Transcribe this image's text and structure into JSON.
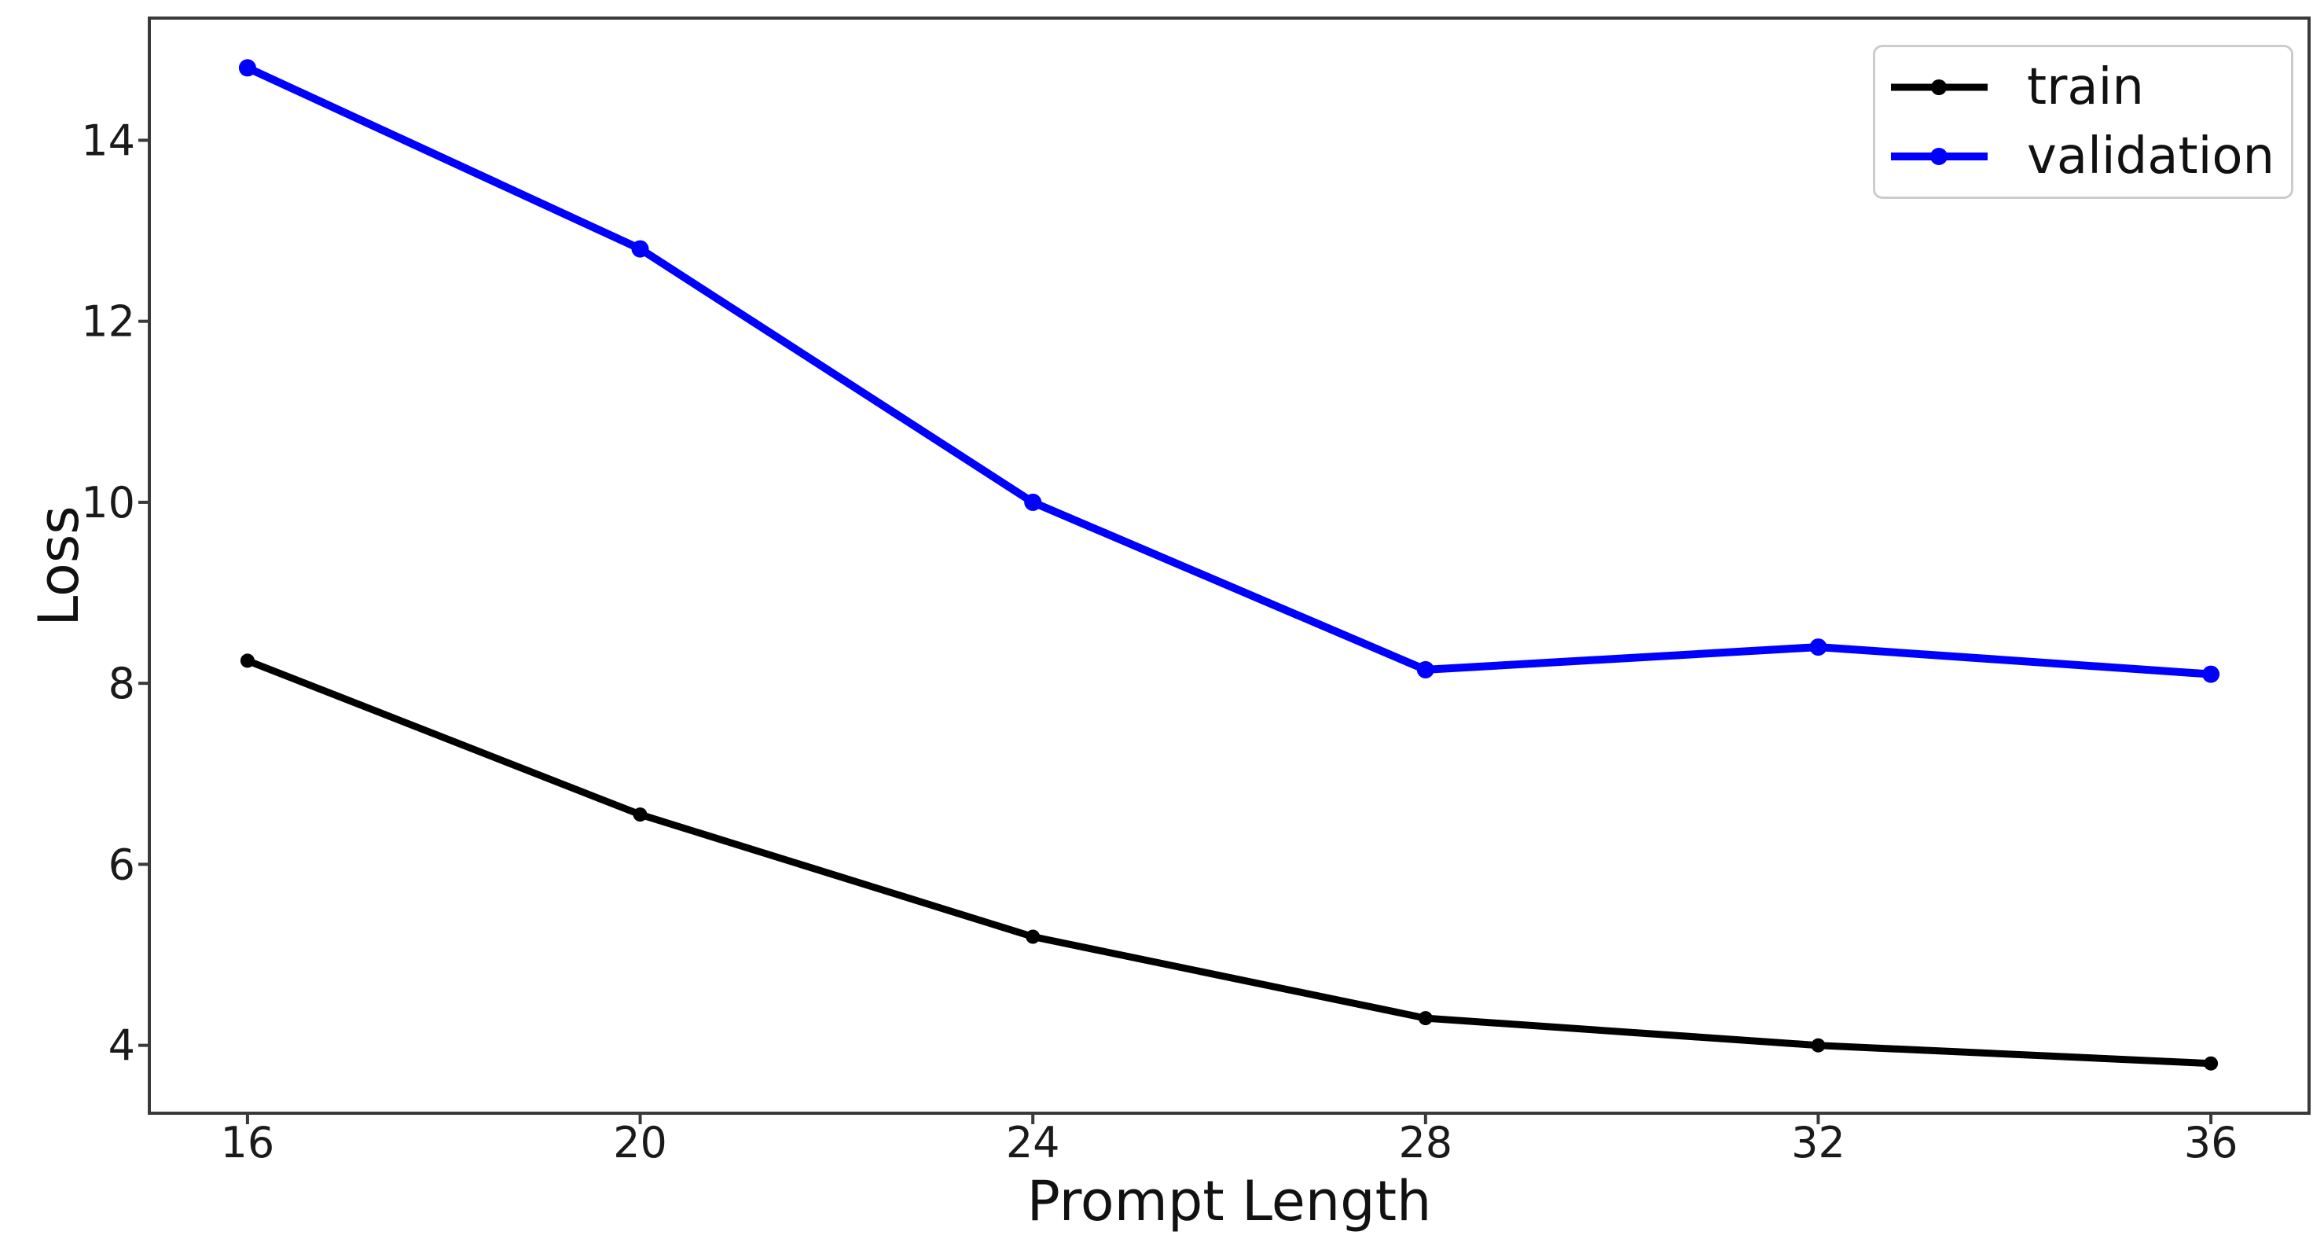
{
  "figure": {
    "background": "#ffffff",
    "axis_color": "#3a3a3a",
    "tick_label_color": "#1a1a1a",
    "text_color": "#111111",
    "legend_border_color": "#cccccc"
  },
  "chart_data": {
    "type": "line",
    "title": "",
    "xlabel": "Prompt Length",
    "ylabel": "Loss",
    "x": [
      16,
      20,
      24,
      28,
      32,
      36
    ],
    "series": [
      {
        "name": "train",
        "color": "#000000",
        "values": [
          8.25,
          6.55,
          5.2,
          4.3,
          4.0,
          3.8
        ],
        "line_width": 9,
        "marker": "circle",
        "marker_radius": 9
      },
      {
        "name": "validation",
        "color": "#0000ff",
        "values": [
          14.8,
          12.8,
          10.0,
          8.15,
          8.4,
          8.1
        ],
        "line_width": 10,
        "marker": "circle",
        "marker_radius": 11
      }
    ],
    "xlim": [
      15,
      37
    ],
    "ylim": [
      3.25,
      15.35
    ],
    "xticks": [
      16,
      20,
      24,
      28,
      32,
      36
    ],
    "yticks": [
      4,
      6,
      8,
      10,
      12,
      14
    ],
    "grid": false,
    "legend_position": "upper right"
  }
}
